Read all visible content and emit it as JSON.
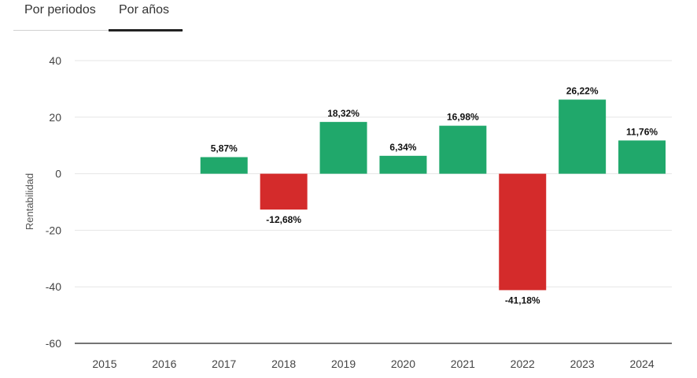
{
  "tabs": [
    {
      "label": "Por periodos",
      "active": false
    },
    {
      "label": "Por años",
      "active": true
    }
  ],
  "chart_data": {
    "type": "bar",
    "categories": [
      "2015",
      "2016",
      "2017",
      "2018",
      "2019",
      "2020",
      "2021",
      "2022",
      "2023",
      "2024"
    ],
    "values": [
      null,
      null,
      5.87,
      -12.68,
      18.32,
      6.34,
      16.98,
      -41.18,
      26.22,
      11.76
    ],
    "data_labels": [
      "",
      "",
      "5,87%",
      "-12,68%",
      "18,32%",
      "6,34%",
      "16,98%",
      "-41,18%",
      "26,22%",
      "11,76%"
    ],
    "ylabel": "Rentabilidad",
    "ylim": [
      -60,
      40
    ],
    "yticks": [
      40,
      20,
      0,
      -20,
      -40,
      -60
    ],
    "ytick_labels": [
      "40",
      "20",
      "0",
      "-20",
      "-40",
      "-60"
    ],
    "grid": true,
    "colors": {
      "positive": "#20a86b",
      "negative": "#d42b2b"
    }
  }
}
